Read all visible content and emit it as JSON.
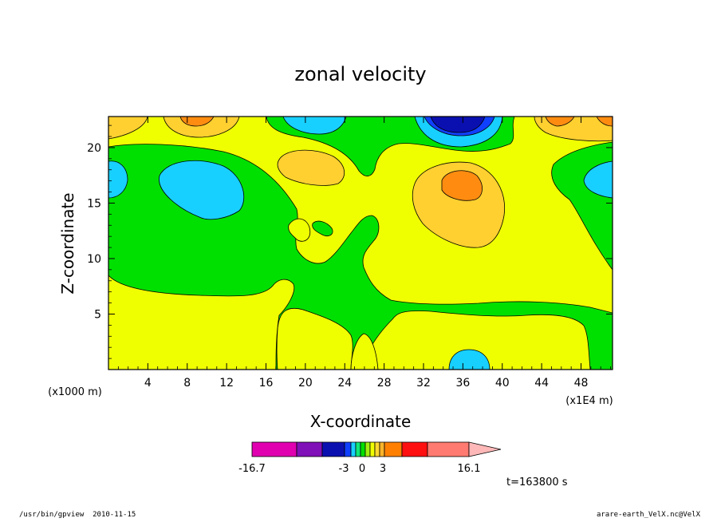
{
  "chart_data": {
    "type": "heatmap",
    "title": "zonal velocity",
    "xlabel": "X-coordinate",
    "ylabel": "Z-coordinate",
    "x_unit_left": "(x1000 m)",
    "x_unit_right": "(x1E4 m)",
    "xlim": [
      0,
      51.2
    ],
    "ylim": [
      0,
      22.8
    ],
    "x_ticks": [
      "4",
      "8",
      "12",
      "16",
      "20",
      "24",
      "28",
      "32",
      "36",
      "40",
      "44",
      "48"
    ],
    "y_ticks": [
      "5",
      "10",
      "15",
      "20"
    ],
    "colorbar": {
      "min_label": "-16.7",
      "labels": [
        "-3",
        "0",
        "3"
      ],
      "max_label": "16.1",
      "colors": [
        "#e000b0",
        "#8010b8",
        "#0a10b0",
        "#1040ff",
        "#18d0ff",
        "#10e878",
        "#00e000",
        "#a0f010",
        "#f0ff00",
        "#ffd830",
        "#ffb428",
        "#ff8000",
        "#ff1010",
        "#ff7a70",
        "#ffb8b8"
      ]
    },
    "levels": {
      "strong_negative": "#0a10b0",
      "moderate_negative": "#1040ff",
      "weak_negative": "#18d0ff",
      "near_zero_negative": "#00e000",
      "near_zero_positive": "#f0ff00",
      "weak_positive": "#ffd030",
      "moderate_positive": "#ff8c10"
    },
    "time_label": "t=163800 s"
  },
  "footer": {
    "left": "/usr/bin/gpview  2010-11-15",
    "right": "arare-earth_VelX.nc@VelX"
  }
}
